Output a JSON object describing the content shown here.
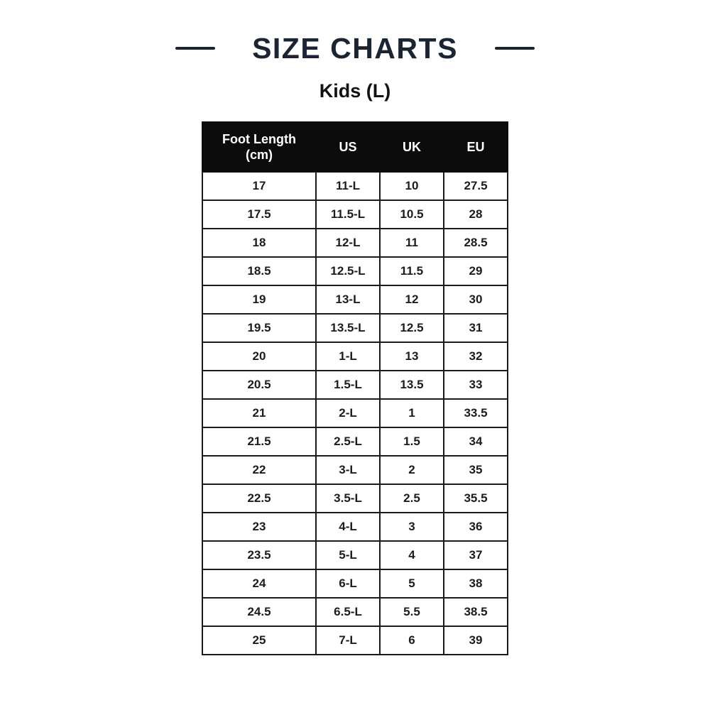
{
  "title": "SIZE CHARTS",
  "subtitle": "Kids (L)",
  "colors": {
    "title_navy": "#1a2433",
    "header_background": "#0c0c0c",
    "header_text": "#ffffff",
    "table_border": "#1a1a1a",
    "cell_text": "#1c1c1c",
    "page_background": "#ffffff"
  },
  "table": {
    "headers": [
      "Foot Length (cm)",
      "US",
      "UK",
      "EU"
    ],
    "rows": [
      [
        "17",
        "11-L",
        "10",
        "27.5"
      ],
      [
        "17.5",
        "11.5-L",
        "10.5",
        "28"
      ],
      [
        "18",
        "12-L",
        "11",
        "28.5"
      ],
      [
        "18.5",
        "12.5-L",
        "11.5",
        "29"
      ],
      [
        "19",
        "13-L",
        "12",
        "30"
      ],
      [
        "19.5",
        "13.5-L",
        "12.5",
        "31"
      ],
      [
        "20",
        "1-L",
        "13",
        "32"
      ],
      [
        "20.5",
        "1.5-L",
        "13.5",
        "33"
      ],
      [
        "21",
        "2-L",
        "1",
        "33.5"
      ],
      [
        "21.5",
        "2.5-L",
        "1.5",
        "34"
      ],
      [
        "22",
        "3-L",
        "2",
        "35"
      ],
      [
        "22.5",
        "3.5-L",
        "2.5",
        "35.5"
      ],
      [
        "23",
        "4-L",
        "3",
        "36"
      ],
      [
        "23.5",
        "5-L",
        "4",
        "37"
      ],
      [
        "24",
        "6-L",
        "5",
        "38"
      ],
      [
        "24.5",
        "6.5-L",
        "5.5",
        "38.5"
      ],
      [
        "25",
        "7-L",
        "6",
        "39"
      ]
    ]
  }
}
